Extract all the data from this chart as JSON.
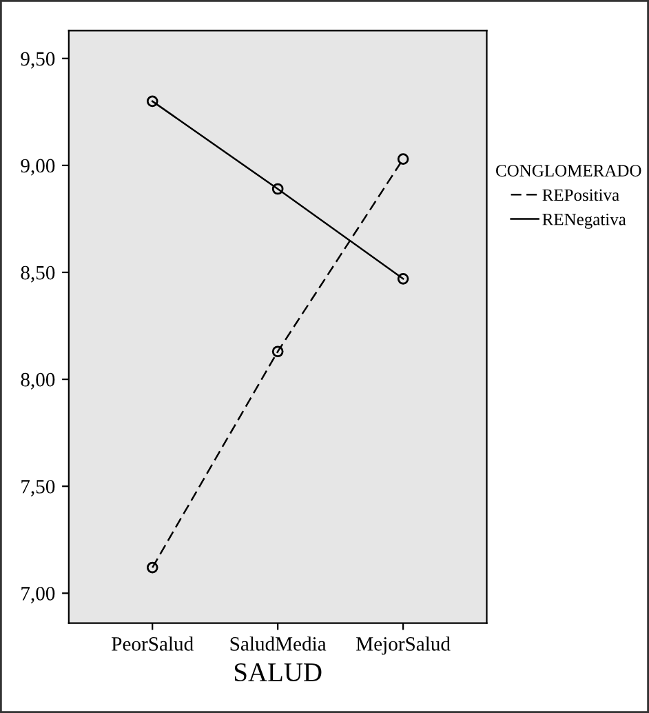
{
  "chart_data": {
    "type": "line",
    "xlabel": "SALUD",
    "legend_title": "CONGLOMERADO",
    "legend": "right",
    "marker": "circle",
    "grid": false,
    "categories": [
      "PeorSalud",
      "SaludMedia",
      "MejorSalud"
    ],
    "series": [
      {
        "name": "REPositiva",
        "color": "#000000",
        "line_style": "dashed",
        "values": [
          7.12,
          8.13,
          9.03
        ]
      },
      {
        "name": "RENegativa",
        "color": "#000000",
        "line_style": "solid",
        "values": [
          9.3,
          8.89,
          8.47
        ]
      }
    ],
    "ylim": [
      6.86,
      9.63
    ],
    "yticks": [
      {
        "value": 7.0,
        "label": "7,00"
      },
      {
        "value": 7.5,
        "label": "7,50"
      },
      {
        "value": 8.0,
        "label": "8,00"
      },
      {
        "value": 8.5,
        "label": "8,50"
      },
      {
        "value": 9.0,
        "label": "9,00"
      },
      {
        "value": 9.5,
        "label": "9,50"
      }
    ]
  }
}
